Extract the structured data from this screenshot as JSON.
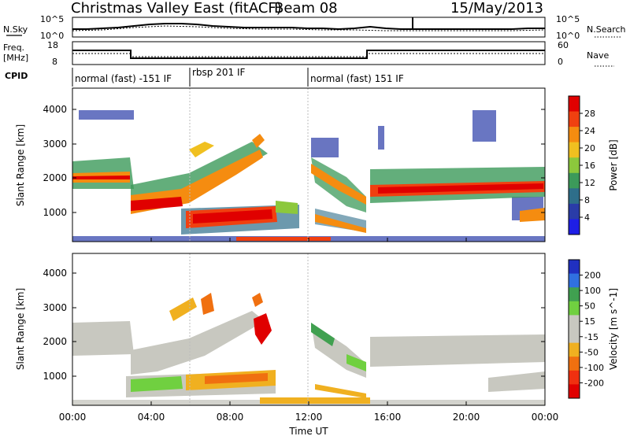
{
  "header": {
    "title": "Christmas Valley East (fitACF)",
    "beam": "Beam 08",
    "date": "15/May/2013"
  },
  "nsky_panel": {
    "left_label": "N.Sky",
    "right_label": "N.Search",
    "left_ticks": [
      "10^5",
      "10^0"
    ],
    "right_ticks": [
      "10^5",
      "10^0"
    ]
  },
  "freq_panel": {
    "left_label_1": "Freq.",
    "left_label_2": "[MHz]",
    "right_label": "Nave",
    "left_ticks": [
      "18",
      "8"
    ],
    "right_ticks": [
      "60",
      "0"
    ]
  },
  "cpid": {
    "label": "CPID",
    "modes": [
      "normal (fast) -151 IF",
      "rbsp 201 IF",
      "normal (fast) 151 IF"
    ]
  },
  "chart_data": [
    {
      "type": "heatmap",
      "title": "",
      "ylabel": "Slant Range [km]",
      "xlabel": "",
      "y_ticks": [
        "1000",
        "2000",
        "3000",
        "4000"
      ],
      "ylim": [
        180,
        4500
      ],
      "colorbar": {
        "label": "Power [dB]",
        "ticks": [
          "4",
          "8",
          "12",
          "16",
          "20",
          "24",
          "28"
        ],
        "colors": [
          "#1e1ee6",
          "#2a3ca8",
          "#2e6e8a",
          "#3c9a5a",
          "#8cc83c",
          "#f0c020",
          "#f58c10",
          "#f04010",
          "#e00000"
        ]
      }
    },
    {
      "type": "heatmap",
      "title": "",
      "ylabel": "Slant Range [km]",
      "xlabel": "Time UT",
      "y_ticks": [
        "1000",
        "2000",
        "3000",
        "4000"
      ],
      "ylim": [
        180,
        4500
      ],
      "x_ticks": [
        "00:00",
        "04:00",
        "08:00",
        "12:00",
        "16:00",
        "20:00",
        "00:00"
      ],
      "colorbar": {
        "label": "Velocity [m s^-1]",
        "ticks": [
          "200",
          "100",
          "50",
          "15",
          "-15",
          "-50",
          "-100",
          "-200"
        ],
        "colors": [
          "#2030c0",
          "#3070e0",
          "#40a050",
          "#70d040",
          "#c8c8c0",
          "#c8c8c0",
          "#f0b020",
          "#f07010",
          "#f03010",
          "#e00000"
        ]
      }
    }
  ]
}
